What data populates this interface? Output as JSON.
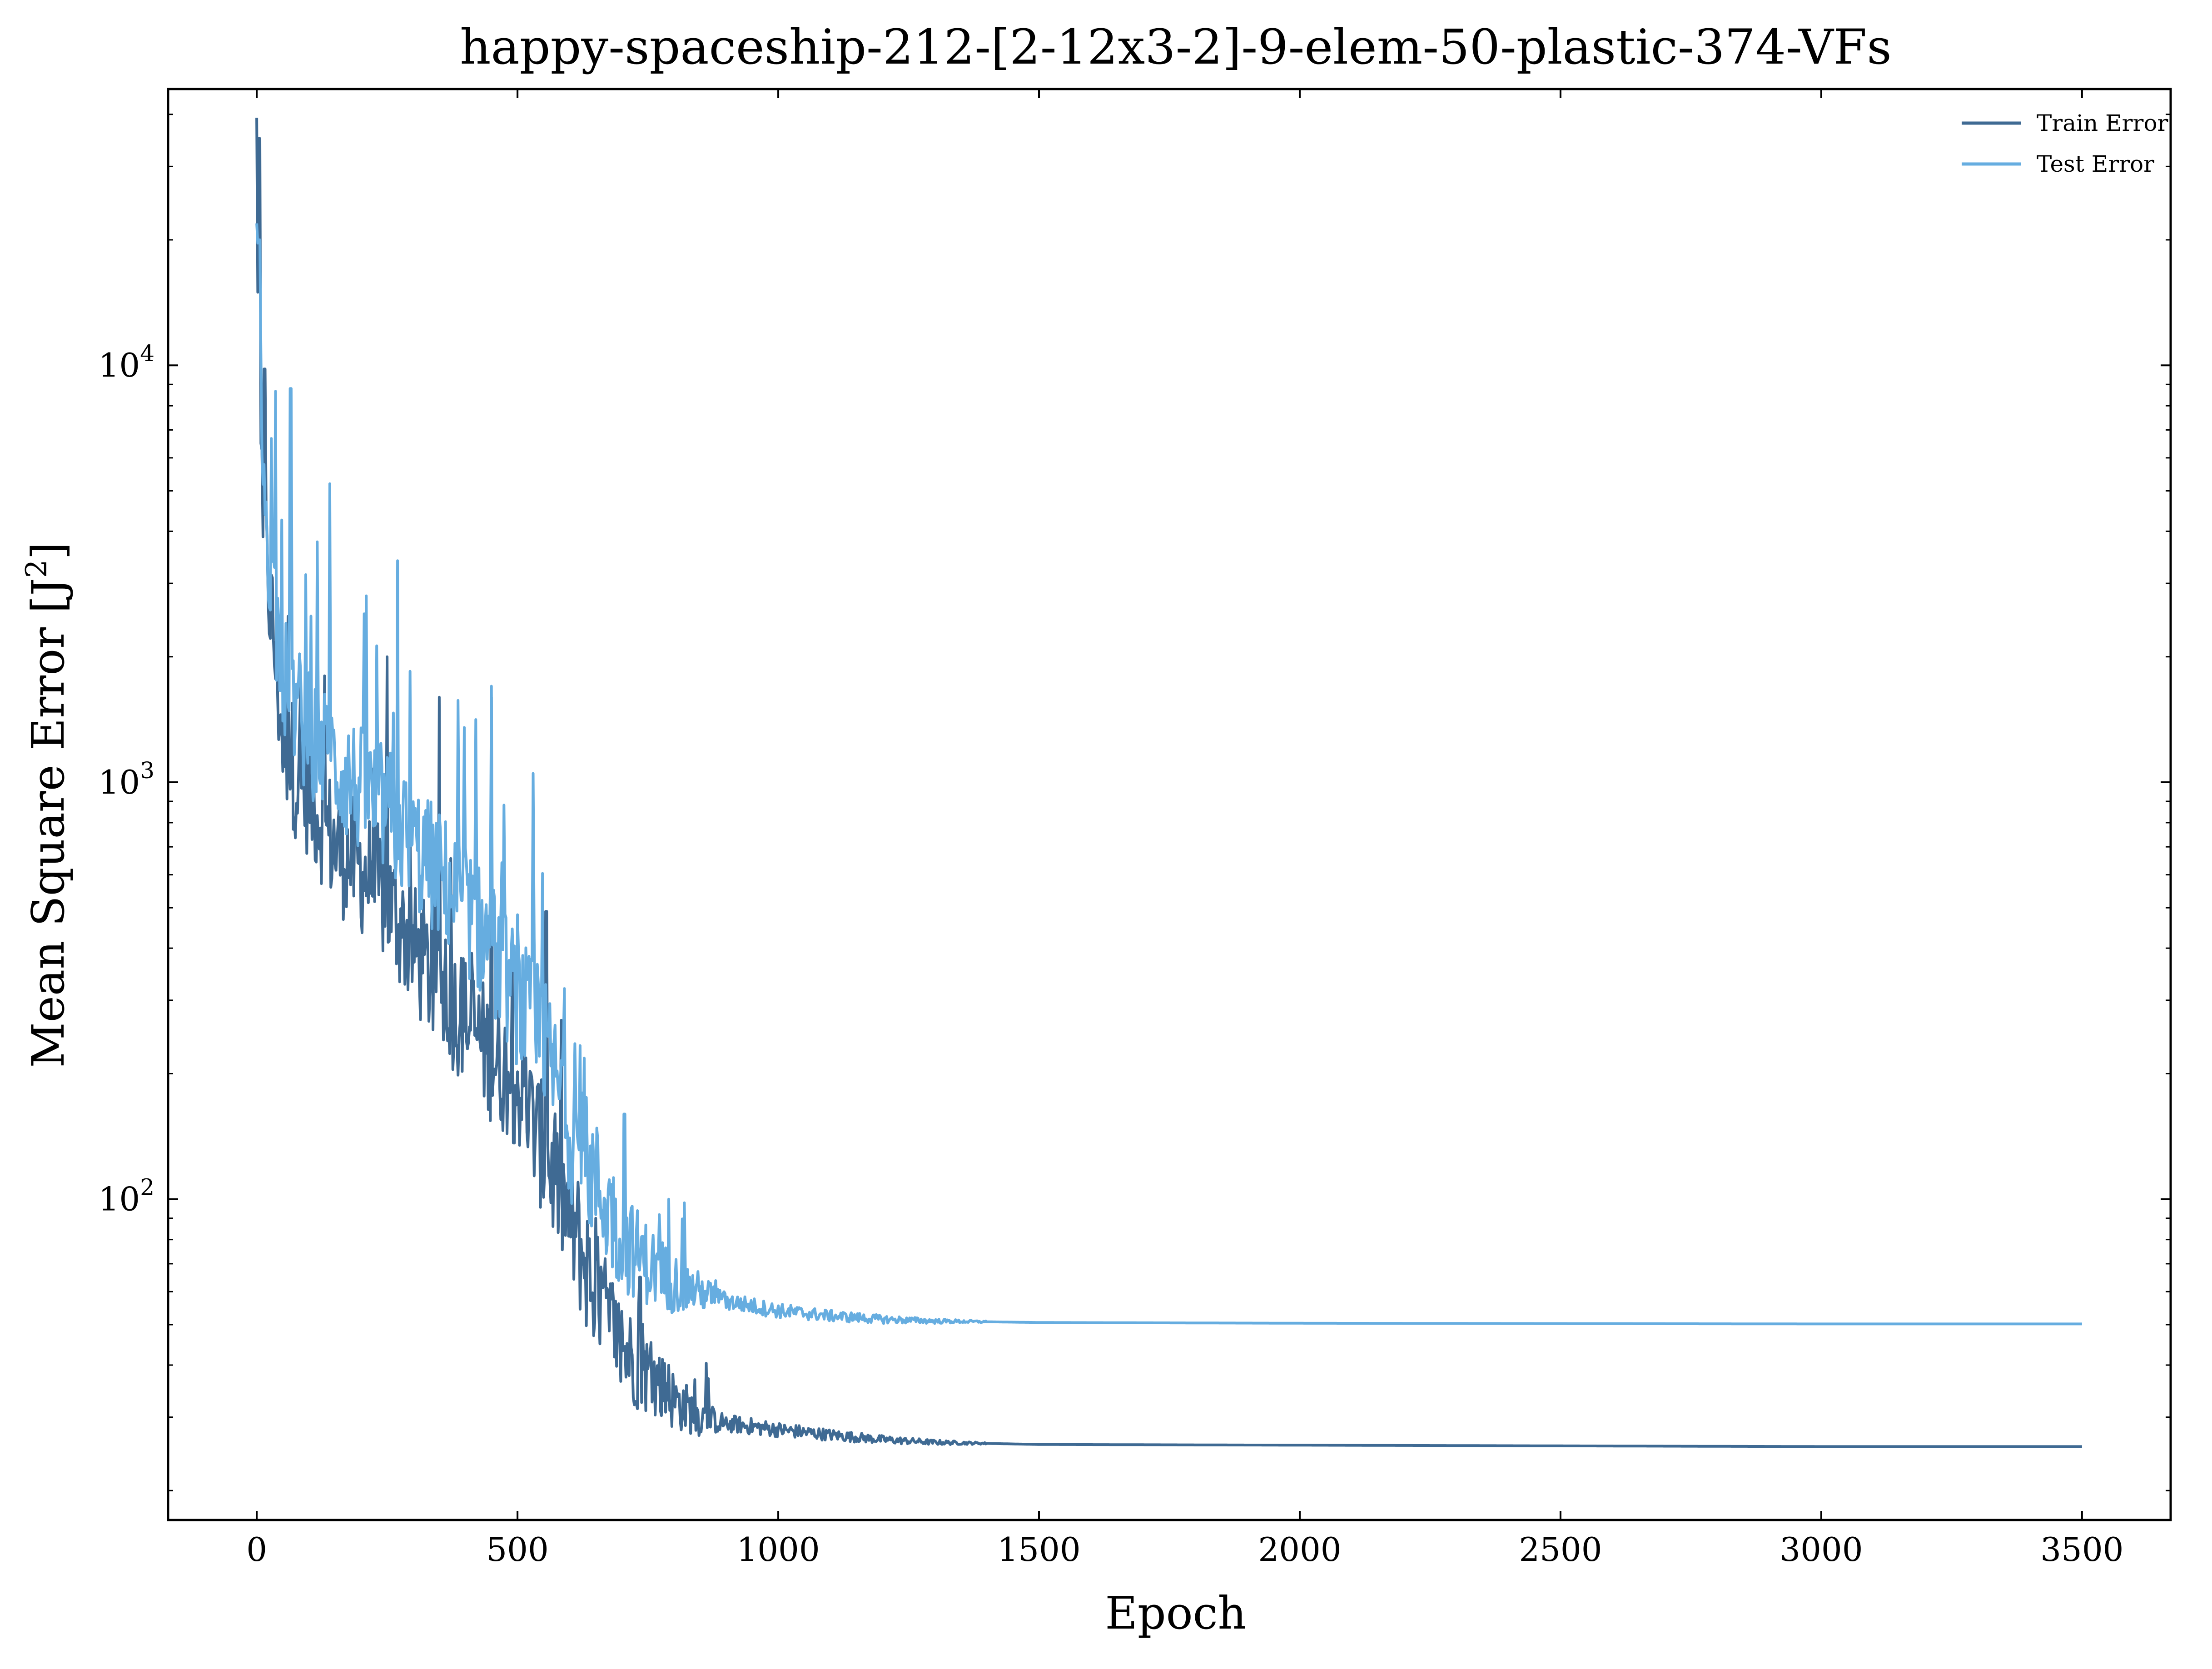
{
  "chart_data": {
    "type": "line",
    "title": "happy-spaceship-212-[2-12x3-2]-9-elem-50-plastic-374-VFs",
    "xlabel": "Epoch",
    "ylabel_main": "Mean Square Error [J",
    "ylabel_sup": "2",
    "ylabel_tail": "]",
    "yscale": "log",
    "xlim": [
      -170,
      3670
    ],
    "ylim": [
      17,
      46000
    ],
    "x_ticks": [
      0,
      500,
      1000,
      1500,
      2000,
      2500,
      3000,
      3500
    ],
    "y_ticks": [
      {
        "value": 100,
        "base": "10",
        "exp": "2"
      },
      {
        "value": 1000,
        "base": "10",
        "exp": "3"
      },
      {
        "value": 10000,
        "base": "10",
        "exp": "4"
      }
    ],
    "legend_position": "top-right",
    "series": [
      {
        "name": "Train Error",
        "color": "#3f6a93",
        "x": [
          0,
          5,
          10,
          20,
          30,
          40,
          50,
          75,
          100,
          150,
          200,
          250,
          300,
          350,
          400,
          450,
          500,
          550,
          600,
          650,
          700,
          750,
          800,
          850,
          900,
          1000,
          1100,
          1200,
          1300,
          1500,
          2000,
          2500,
          3000,
          3500
        ],
        "values": [
          35000,
          6000,
          5500,
          3200,
          2400,
          1700,
          1300,
          1050,
          950,
          700,
          620,
          520,
          400,
          320,
          270,
          220,
          190,
          130,
          90,
          60,
          44,
          38,
          33,
          30,
          29,
          28,
          27.2,
          26.5,
          26.1,
          25.8,
          25.7,
          25.6,
          25.5,
          25.5
        ],
        "spikes": [
          {
            "x": 5,
            "y": 35000
          },
          {
            "x": 15,
            "y": 9800
          },
          {
            "x": 60,
            "y": 2500
          },
          {
            "x": 130,
            "y": 1800
          },
          {
            "x": 250,
            "y": 2000
          },
          {
            "x": 350,
            "y": 1600
          },
          {
            "x": 450,
            "y": 1600
          },
          {
            "x": 555,
            "y": 490
          },
          {
            "x": 650,
            "y": 90
          },
          {
            "x": 735,
            "y": 65
          },
          {
            "x": 790,
            "y": 40
          }
        ]
      },
      {
        "name": "Test Error",
        "color": "#66ade0",
        "x": [
          0,
          5,
          10,
          20,
          30,
          40,
          50,
          75,
          100,
          150,
          200,
          250,
          300,
          350,
          400,
          450,
          500,
          550,
          600,
          650,
          700,
          750,
          800,
          850,
          900,
          1000,
          1100,
          1200,
          1300,
          1500,
          2000,
          2500,
          3000,
          3500
        ],
        "values": [
          20000,
          9500,
          7000,
          4200,
          3000,
          2200,
          1800,
          1500,
          1300,
          1100,
          950,
          850,
          700,
          600,
          500,
          400,
          300,
          240,
          150,
          110,
          80,
          70,
          63,
          60,
          57,
          54,
          52.5,
          51.5,
          51,
          50.6,
          50.4,
          50.3,
          50.2,
          50.2
        ],
        "spikes": [
          {
            "x": 5,
            "y": 20000
          },
          {
            "x": 65,
            "y": 8800
          },
          {
            "x": 140,
            "y": 5200
          },
          {
            "x": 270,
            "y": 3400
          },
          {
            "x": 210,
            "y": 2800
          },
          {
            "x": 450,
            "y": 1700
          },
          {
            "x": 530,
            "y": 1050
          },
          {
            "x": 590,
            "y": 320
          },
          {
            "x": 705,
            "y": 160
          },
          {
            "x": 790,
            "y": 100
          },
          {
            "x": 820,
            "y": 98
          }
        ]
      }
    ]
  }
}
